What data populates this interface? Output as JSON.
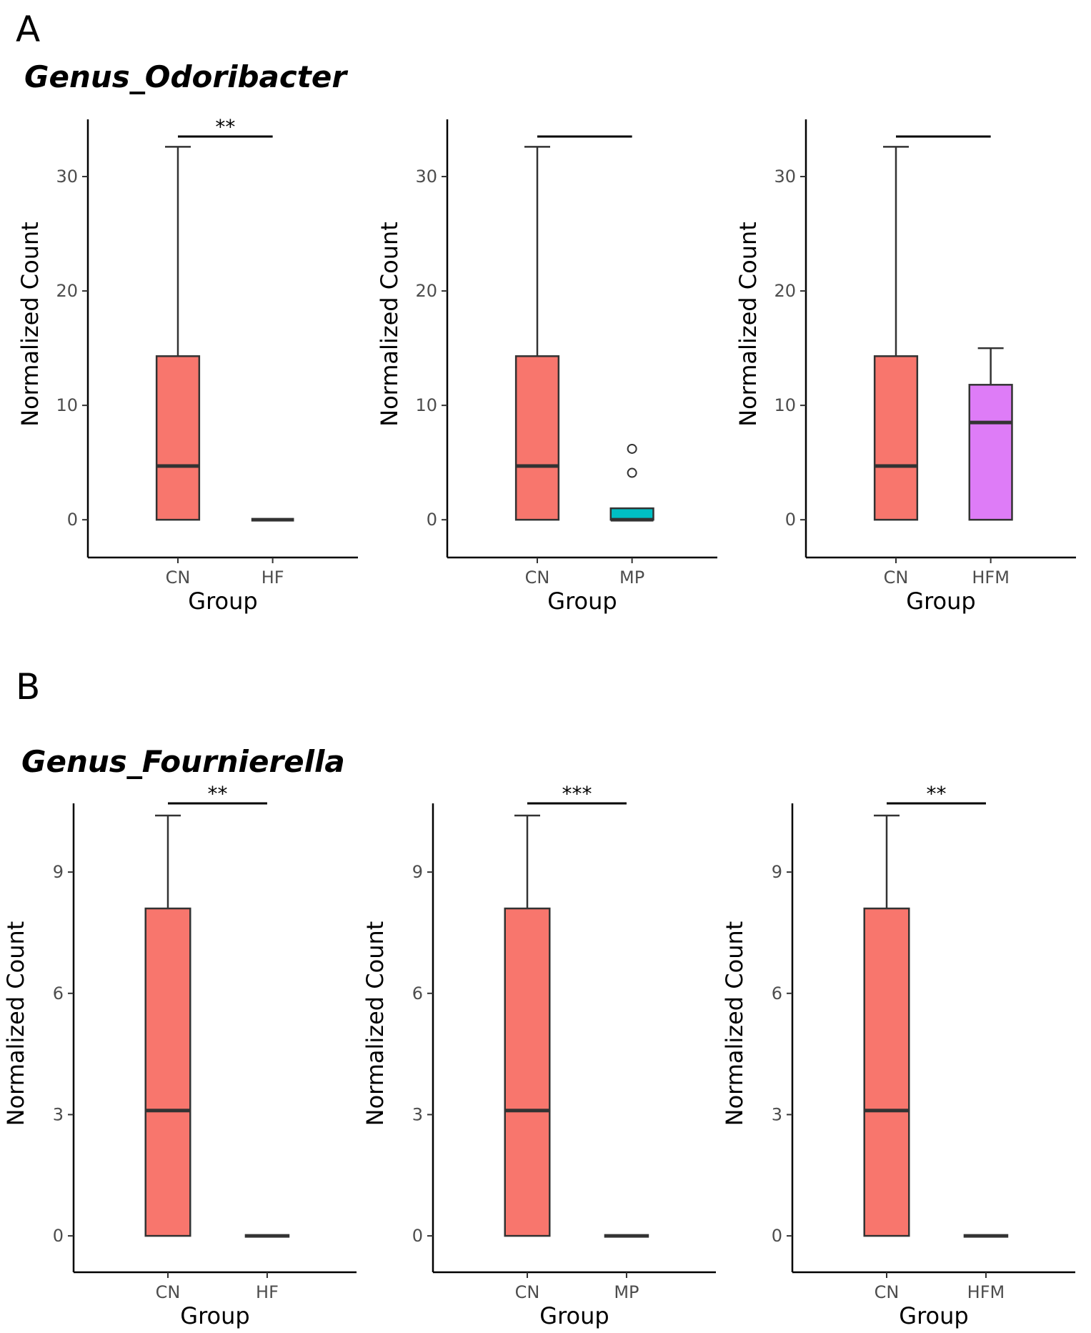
{
  "panels": [
    {
      "letter": "A",
      "genus": "Genus_Odoribacter",
      "ylim": [
        -3.3,
        35
      ],
      "yticks": [
        0,
        10,
        20,
        30
      ],
      "bracket_y": 33.5,
      "charts": [
        {
          "type": "box",
          "categories": [
            "CN",
            "HF"
          ],
          "xlabel": "Group",
          "ylabel": "Normalized Count",
          "significance": "**",
          "boxes": [
            {
              "group": "CN",
              "color": "#F8766D",
              "min": 0,
              "q1": 0,
              "median": 4.7,
              "q3": 14.3,
              "max": 32.6,
              "outliers": []
            },
            {
              "group": "HF",
              "color": "#F8766D",
              "min": 0,
              "q1": 0,
              "median": 0,
              "q3": 0,
              "max": 0,
              "outliers": []
            }
          ]
        },
        {
          "type": "box",
          "categories": [
            "CN",
            "MP"
          ],
          "xlabel": "Group",
          "ylabel": "Normalized Count",
          "significance": "",
          "boxes": [
            {
              "group": "CN",
              "color": "#F8766D",
              "min": 0,
              "q1": 0,
              "median": 4.7,
              "q3": 14.3,
              "max": 32.6,
              "outliers": []
            },
            {
              "group": "MP",
              "color": "#00BFC4",
              "min": 0,
              "q1": 0,
              "median": 0,
              "q3": 1.0,
              "max": 1.0,
              "outliers": [
                4.1,
                6.2
              ]
            }
          ]
        },
        {
          "type": "box",
          "categories": [
            "CN",
            "HFM"
          ],
          "xlabel": "Group",
          "ylabel": "Normalized Count",
          "significance": "",
          "boxes": [
            {
              "group": "CN",
              "color": "#F8766D",
              "min": 0,
              "q1": 0,
              "median": 4.7,
              "q3": 14.3,
              "max": 32.6,
              "outliers": []
            },
            {
              "group": "HFM",
              "color": "#DE7CF7",
              "min": 0,
              "q1": 0,
              "median": 8.5,
              "q3": 11.8,
              "max": 15.0,
              "outliers": []
            }
          ]
        }
      ]
    },
    {
      "letter": "B",
      "genus": "Genus_Fournierella",
      "ylim": [
        -0.9,
        10.7
      ],
      "yticks": [
        0,
        3,
        6,
        9
      ],
      "bracket_y": 10.7,
      "charts": [
        {
          "type": "box",
          "categories": [
            "CN",
            "HF"
          ],
          "xlabel": "Group",
          "ylabel": "Normalized Count",
          "significance": "**",
          "boxes": [
            {
              "group": "CN",
              "color": "#F8766D",
              "min": 0,
              "q1": 0,
              "median": 3.1,
              "q3": 8.1,
              "max": 10.4,
              "outliers": []
            },
            {
              "group": "HF",
              "color": "#F8766D",
              "min": 0,
              "q1": 0,
              "median": 0,
              "q3": 0,
              "max": 0,
              "outliers": []
            }
          ]
        },
        {
          "type": "box",
          "categories": [
            "CN",
            "MP"
          ],
          "xlabel": "Group",
          "ylabel": "Normalized Count",
          "significance": "***",
          "boxes": [
            {
              "group": "CN",
              "color": "#F8766D",
              "min": 0,
              "q1": 0,
              "median": 3.1,
              "q3": 8.1,
              "max": 10.4,
              "outliers": []
            },
            {
              "group": "MP",
              "color": "#00BFC4",
              "min": 0,
              "q1": 0,
              "median": 0,
              "q3": 0,
              "max": 0,
              "outliers": []
            }
          ]
        },
        {
          "type": "box",
          "categories": [
            "CN",
            "HFM"
          ],
          "xlabel": "Group",
          "ylabel": "Normalized Count",
          "significance": "**",
          "boxes": [
            {
              "group": "CN",
              "color": "#F8766D",
              "min": 0,
              "q1": 0,
              "median": 3.1,
              "q3": 8.1,
              "max": 10.4,
              "outliers": []
            },
            {
              "group": "HFM",
              "color": "#DE7CF7",
              "min": 0,
              "q1": 0,
              "median": 0,
              "q3": 0,
              "max": 0,
              "outliers": []
            }
          ]
        }
      ]
    }
  ]
}
